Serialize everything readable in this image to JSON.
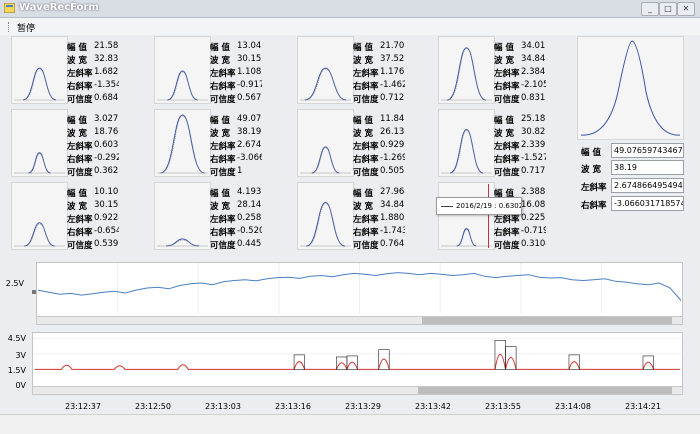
{
  "window": {
    "title": "WaveRecForm",
    "minimize": "_",
    "maximize": "□",
    "close": "✕"
  },
  "menu": {
    "pause": "暂停"
  },
  "labels": {
    "amp": "幅 值",
    "width": "波 宽",
    "left": "左斜率",
    "right": "右斜率",
    "conf": "可信度"
  },
  "cells": [
    {
      "amp": "21.58(",
      "width": "32.83",
      "left": "1.6823",
      "right": "-1.354",
      "conf": "0.6847"
    },
    {
      "amp": "13.047",
      "width": "30.15",
      "left": "1.1087",
      "right": "-0.917",
      "conf": "0.5676"
    },
    {
      "amp": "21.700",
      "width": "37.52",
      "left": "1.1763",
      "right": "-1.462",
      "conf": "0.7121"
    },
    {
      "amp": "34.016",
      "width": "34.84",
      "left": "2.3847",
      "right": "-2.105",
      "conf": "0.8312"
    },
    {
      "amp": "3.0277",
      "width": "18.76",
      "left": "0.6038",
      "right": "-0.292",
      "conf": "0.3625"
    },
    {
      "amp": "49.076",
      "width": "38.19",
      "left": "2.6748",
      "right": "-3.066",
      "conf": "1"
    },
    {
      "amp": "11.846",
      "width": "26.13",
      "left": "0.9298",
      "right": "-1.269",
      "conf": "0.5051"
    },
    {
      "amp": "25.182",
      "width": "30.82",
      "left": "2.3392",
      "right": "-1.527",
      "conf": "0.7177"
    },
    {
      "amp": "10.107",
      "width": "30.15",
      "left": "0.9224",
      "right": "-0.654",
      "conf": "0.5391"
    },
    {
      "amp": "4.1938",
      "width": "28.14",
      "left": "0.2586",
      "right": "-0.520",
      "conf": "0.4451"
    },
    {
      "amp": "27.964",
      "width": "34.84",
      "left": "1.8800",
      "right": "-1.743",
      "conf": "0.7647"
    },
    {
      "amp": "2.3887",
      "width": "16.08",
      "left": "0.2257",
      "right": "-0.719",
      "conf": "0.3104"
    }
  ],
  "selected": {
    "amp": "49.07659743467",
    "width": "38.19",
    "left": "2.674866495494",
    "right": "-3.066031718574"
  },
  "tooltip": {
    "text": "2016/2/19 : 0.6302"
  },
  "upper_chart": {
    "ylabel": "2.5V"
  },
  "lower_chart": {
    "yticks": [
      "4.5V",
      "3V",
      "1.5V",
      "0V"
    ]
  },
  "xticks": [
    "23:12:37",
    "23:12:50",
    "23:13:03",
    "23:13:16",
    "23:13:29",
    "23:13:42",
    "23:13:55",
    "23:14:08",
    "23:14:21"
  ],
  "colors": {
    "wave_blue": "#3b55a8",
    "signal_blue": "#4a7fc1",
    "signal_red": "#d2332d"
  },
  "chart_data": [
    {
      "type": "line",
      "series": [
        {
          "values": [
            2.55,
            2.5,
            2.45,
            2.47,
            2.43,
            2.46,
            2.5,
            2.52,
            2.48,
            2.55,
            2.6,
            2.62,
            2.58,
            2.66,
            2.7,
            2.72,
            2.68,
            2.75,
            2.78,
            2.8,
            2.77,
            2.82,
            2.85,
            2.86,
            2.83,
            2.88,
            2.9,
            2.87,
            2.92,
            2.95,
            2.93,
            2.9,
            2.94,
            2.97,
            2.95,
            2.92,
            2.95,
            2.93,
            2.9,
            2.92,
            2.95,
            2.88,
            2.85,
            2.88,
            2.9,
            2.92,
            2.86,
            2.84,
            2.85,
            2.8,
            2.78,
            2.8,
            2.82,
            2.76,
            2.74,
            2.7,
            2.68,
            2.72,
            2.6,
            2.3
          ]
        }
      ]
    },
    {
      "type": "line",
      "series": [
        {
          "values": [
            1.5,
            1.5,
            1.5,
            2.1,
            1.5,
            1.5,
            1.5,
            1.5,
            2.0,
            1.5,
            1.5,
            1.5,
            1.5,
            1.5,
            2.2,
            1.5,
            1.5,
            1.5,
            1.5,
            1.5,
            1.5,
            1.5,
            1.5,
            1.5,
            1.5,
            2.8,
            1.5,
            1.5,
            1.5,
            2.6,
            2.7,
            1.5,
            1.5,
            3.3,
            1.5,
            1.5,
            1.5,
            1.5,
            1.5,
            1.5,
            1.5,
            1.5,
            1.5,
            1.5,
            4.2,
            3.6,
            1.5,
            1.5,
            1.5,
            1.5,
            1.5,
            2.8,
            1.5,
            1.5,
            1.5,
            1.5,
            1.5,
            1.5,
            2.7,
            1.5,
            1.5,
            1.5
          ]
        }
      ]
    }
  ]
}
